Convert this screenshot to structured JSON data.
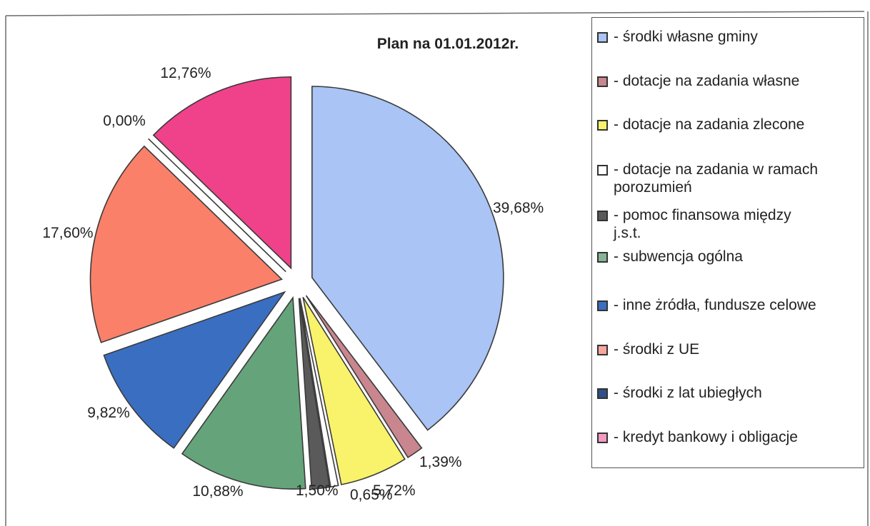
{
  "chart_data": {
    "type": "pie",
    "title": "Plan na 01.01.2012r.",
    "legend_position": "right",
    "slices": [
      {
        "label": "- środki własne gminy",
        "value": 39.68,
        "display": "39,68%",
        "color": "#a9c4f5",
        "exploded": true
      },
      {
        "label": "- dotacje na zadania własne",
        "value": 1.39,
        "display": "1,39%",
        "color": "#c9868f",
        "exploded": true
      },
      {
        "label": "- dotacje na zadania zlecone",
        "value": 5.72,
        "display": "5,72%",
        "color": "#f8f36a",
        "exploded": true
      },
      {
        "label": "- dotacje na zadania w ramach\nporozumień",
        "value": 0.65,
        "display": "0,65%",
        "color": "#ffffff",
        "exploded": true
      },
      {
        "label": "- pomoc finansowa między\nj.s.t.",
        "value": 1.5,
        "display": "1,50%",
        "color": "#5a5a5a",
        "exploded": true
      },
      {
        "label": "- subwencja ogólna",
        "value": 10.88,
        "display": "10,88%",
        "color": "#65a47a",
        "exploded": true
      },
      {
        "label": "- inne żródła, fundusze celowe",
        "value": 9.82,
        "display": "9,82%",
        "color": "#3a6ec1",
        "exploded": true
      },
      {
        "label": "- środki z UE",
        "value": 17.6,
        "display": "17,60%",
        "color": "#fa806a",
        "exploded": true
      },
      {
        "label": "- środki z lat ubiegłych",
        "value": 0.0,
        "display": "0,00%",
        "color": "#2f4f86",
        "exploded": true
      },
      {
        "label": "- kredyt bankowy i obligacje",
        "value": 12.76,
        "display": "12,76%",
        "color": "#f0428a",
        "exploded": true
      }
    ]
  },
  "legend_colors": [
    "#a9c4f5",
    "#c9868f",
    "#f8f36a",
    "#ffffff",
    "#5a5a5a",
    "#86b596",
    "#3a6ec1",
    "#f7a7a0",
    "#2f4f86",
    "#f49ac0"
  ]
}
